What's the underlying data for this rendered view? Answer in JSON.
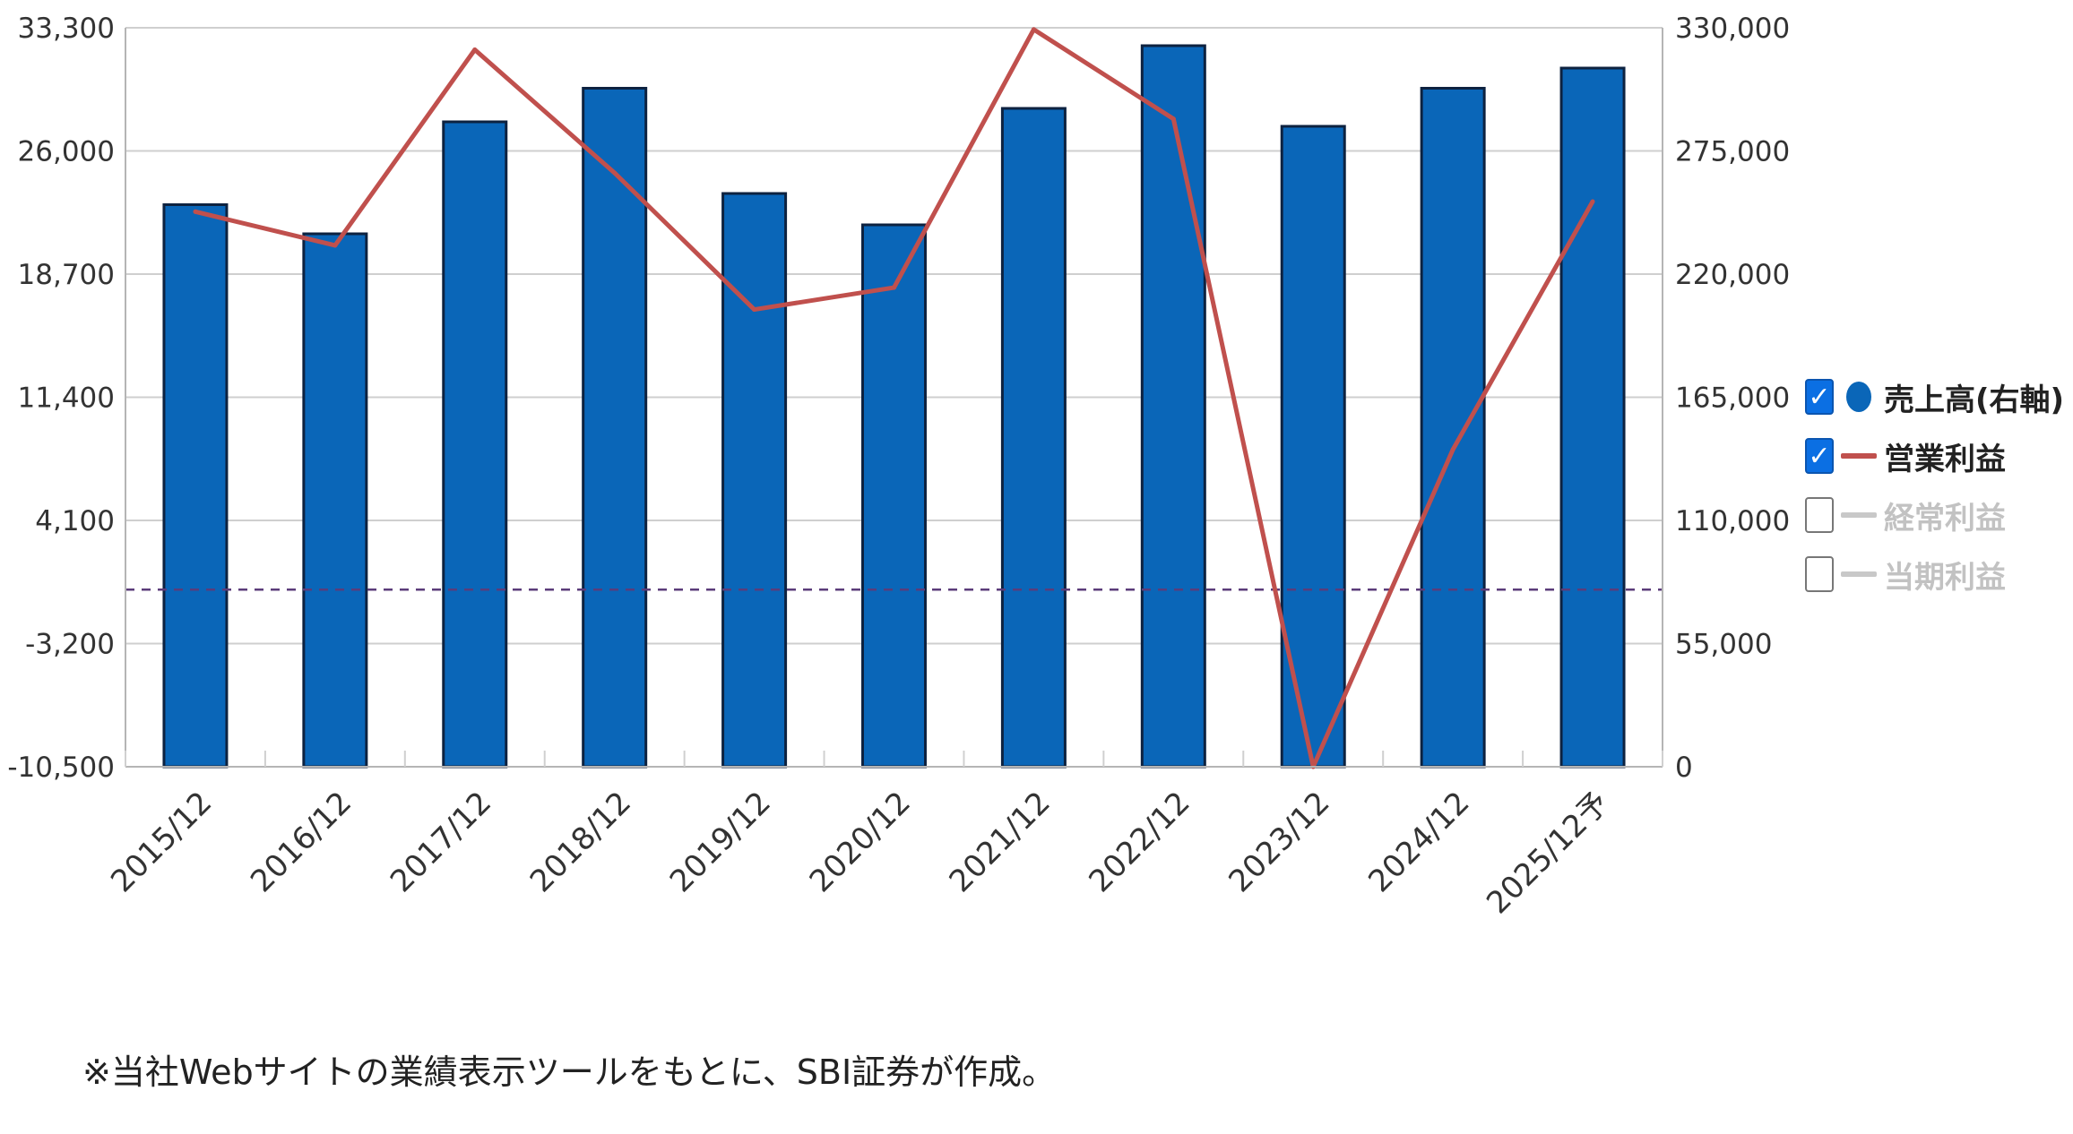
{
  "chart_data": {
    "type": "bar",
    "categories": [
      "2015/12",
      "2016/12",
      "2017/12",
      "2018/12",
      "2019/12",
      "2020/12",
      "2021/12",
      "2022/12",
      "2023/12",
      "2024/12",
      "2025/12予"
    ],
    "series": [
      {
        "name": "売上高(右軸)",
        "type": "bar",
        "axis": "right",
        "color": "#0a66b8",
        "values": [
          251000,
          238000,
          288000,
          303000,
          256000,
          242000,
          294000,
          322000,
          286000,
          303000,
          312000
        ]
      },
      {
        "name": "営業利益",
        "type": "line",
        "axis": "left",
        "color": "#c0504d",
        "values": [
          22400,
          20400,
          32000,
          24700,
          16600,
          17900,
          33200,
          27900,
          -10500,
          8300,
          23000
        ]
      }
    ],
    "left_axis": {
      "ticks": [
        "33,300",
        "26,000",
        "18,700",
        "11,400",
        "4,100",
        "-3,200",
        "-10,500"
      ],
      "min": -10500,
      "max": 33300
    },
    "right_axis": {
      "ticks": [
        "330,000",
        "275,000",
        "220,000",
        "165,000",
        "110,000",
        "55,000",
        "0"
      ],
      "min": 0,
      "max": 330000
    },
    "zero_line": 0,
    "grid": true
  },
  "legend": [
    {
      "label": "売上高(右軸)",
      "checked": true,
      "symbol": "dot",
      "color": "#0a66b8"
    },
    {
      "label": "営業利益",
      "checked": true,
      "symbol": "line",
      "color": "#c0504d"
    },
    {
      "label": "経常利益",
      "checked": false,
      "symbol": "line",
      "color": "#c8c8c8"
    },
    {
      "label": "当期利益",
      "checked": false,
      "symbol": "line",
      "color": "#c8c8c8"
    }
  ],
  "checkmark": "✓",
  "footnote": "※当社Webサイトの業績表示ツールをもとに、SBI証券が作成。"
}
